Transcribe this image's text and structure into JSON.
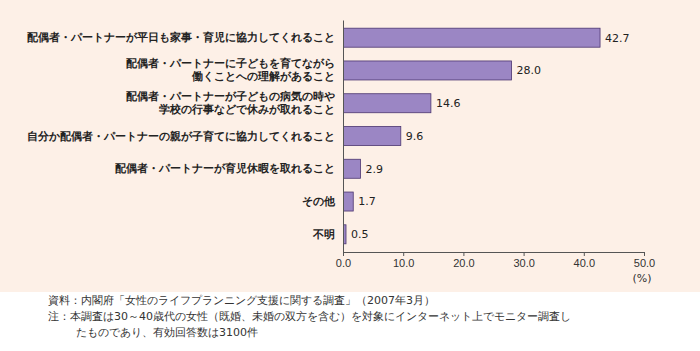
{
  "chart_data": {
    "type": "bar",
    "orientation": "horizontal",
    "categories": [
      "配偶者・パートナーが平日も家事・育児に協力してくれること",
      "配偶者・パートナーに子どもを育てながら\n働くことへの理解があること",
      "配偶者・パートナーが子どもの病気の時や\n学校の行事などで休みが取れること",
      "自分か配偶者・パートナーの親が子育てに協力してくれること",
      "配偶者・パートナーが育児休暇を取れること",
      "その他",
      "不明"
    ],
    "values": [
      42.7,
      28.0,
      14.6,
      9.6,
      2.9,
      1.7,
      0.5
    ],
    "value_labels": [
      "42.7",
      "28.0",
      "14.6",
      "9.6",
      "2.9",
      "1.7",
      "0.5"
    ],
    "color": "#9b86c4",
    "xlim": [
      0,
      50
    ],
    "xticks": [
      {
        "value": 0,
        "label": "0.0"
      },
      {
        "value": 10,
        "label": "10.0"
      },
      {
        "value": 20,
        "label": "20.0"
      },
      {
        "value": 30,
        "label": "30.0"
      },
      {
        "value": 40,
        "label": "40.0"
      },
      {
        "value": 50,
        "label": "50.0"
      }
    ],
    "x_label": "(%)",
    "grid": false,
    "data_labels": true,
    "annotations": [
      "資料：内閣府「女性のライフプランニング支援に関する調査」（2007年3月）",
      "注：本調査は30～40歳代の女性（既婚、未婚の双方を含む）を対象にインターネット上でモニター調査し",
      "たものであり、有効回答数は3100件"
    ]
  }
}
